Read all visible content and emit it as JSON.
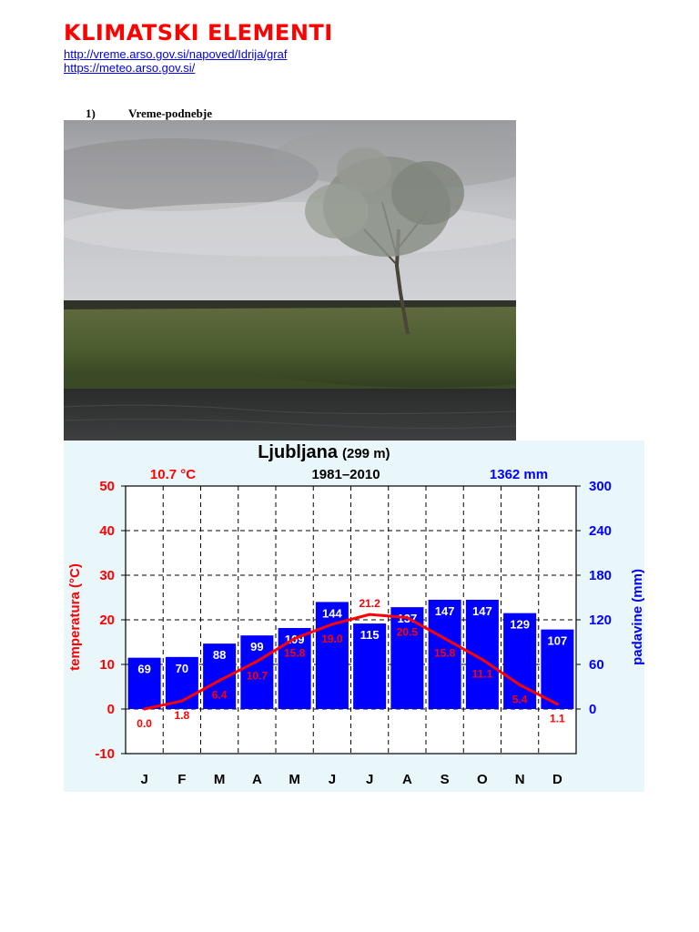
{
  "page": {
    "title": "KLIMATSKI ELEMENTI",
    "links": [
      "http://vreme.arso.gov.si/napoved/Idrija/graf",
      "https://meteo.arso.gov.si/"
    ],
    "section": {
      "number": "1)",
      "title": "Vreme-podnebje"
    }
  },
  "colors": {
    "title": "#ff0000",
    "link": "#0000ee",
    "temperature": "#ff0000",
    "precipitation": "#0000ff",
    "chart_background": "#e9f7fb"
  },
  "chart_data": {
    "type": "bar",
    "title": "Ljubljana",
    "title_suffix": "(299 m)",
    "period": "1981–2010",
    "temp_summary": "10.7 °C",
    "precip_summary": "1362 mm",
    "categories": [
      "J",
      "F",
      "M",
      "A",
      "M",
      "J",
      "J",
      "A",
      "S",
      "O",
      "N",
      "D"
    ],
    "series": [
      {
        "name": "padavine (mm)",
        "type": "bar",
        "axis": "right",
        "values": [
          69,
          70,
          88,
          99,
          109,
          144,
          115,
          137,
          147,
          147,
          129,
          107
        ]
      },
      {
        "name": "temperatura (°C)",
        "type": "line",
        "axis": "left",
        "values": [
          0.0,
          1.8,
          6.4,
          10.7,
          15.8,
          19.0,
          21.2,
          20.5,
          15.8,
          11.1,
          5.4,
          1.1
        ]
      }
    ],
    "ylabel_left": "temperatura (°C)",
    "ylabel_right": "padavine (mm)",
    "ylim_left": [
      -10,
      50
    ],
    "yticks_left": [
      -10,
      0,
      10,
      20,
      30,
      40,
      50
    ],
    "ylim_right": [
      -60,
      300
    ],
    "yticks_right": [
      0,
      60,
      120,
      180,
      240,
      300
    ],
    "grid": true
  }
}
